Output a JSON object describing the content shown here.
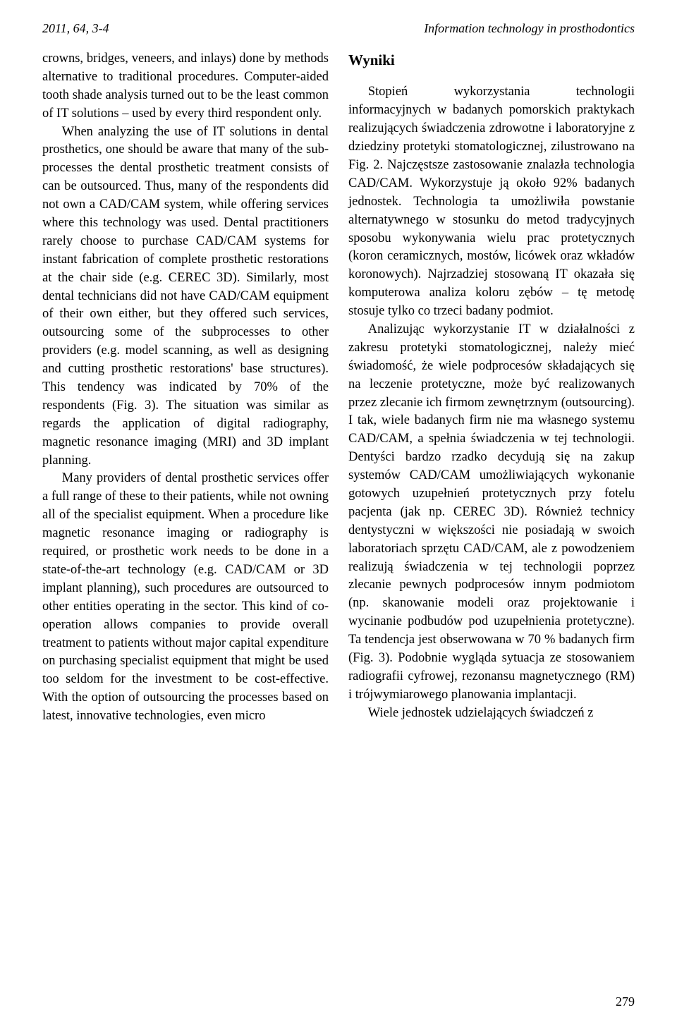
{
  "header": {
    "left": "2011, 64, 3-4",
    "right": "Information technology in prosthodontics"
  },
  "leftColumn": {
    "p1": "crowns, bridges, veneers, and inlays) done by methods alternative to traditional procedures. Computer-aided tooth shade analysis turned out to be the least common of IT solutions – used by every third respondent only.",
    "p2": "When analyzing the use of IT solutions in dental prosthetics, one should be aware that many of the sub-processes the dental prosthetic treatment consists of can be outsourced. Thus, many of the respondents did not own a CAD/CAM system, while offering services where this technology was used. Dental practitioners rarely choose to purchase CAD/CAM systems for instant fabrication of complete prosthetic restorations at the chair side (e.g. CEREC 3D). Similarly, most dental technicians did not have CAD/CAM equipment of their own either, but they offered such services, outsourcing some of the subprocesses to other providers (e.g. model scanning, as well as designing and cutting prosthetic restorations' base structures). This tendency was indicated by 70% of the respondents (Fig. 3). The situation was similar as regards the application of digital radiography, magnetic resonance imaging (MRI) and 3D implant planning.",
    "p3": "Many providers of dental prosthetic services offer a full range of these to their patients, while not owning all of the specialist equipment. When a procedure like magnetic resonance imaging or radiography is required, or prosthetic work needs to be done in a state-of-the-art technology (e.g. CAD/CAM or 3D implant planning), such procedures are outsourced to other entities operating in the sector. This kind of co-operation allows companies to provide overall treatment to patients without major capital expenditure on purchasing specialist equipment that might be used too seldom for the investment to be cost-effective. With the option of outsourcing the processes based on latest, innovative technologies, even micro"
  },
  "rightColumn": {
    "heading": "Wyniki",
    "p1": "Stopień wykorzystania technologii informacyjnych w badanych pomorskich praktykach realizujących świadczenia zdrowotne i laboratoryjne z dziedziny protetyki stomatologicznej, zilustrowano na Fig. 2. Najczęstsze zastosowanie znalazła technologia CAD/CAM. Wykorzystuje ją około 92% badanych jednostek. Technologia ta umożliwiła powstanie alternatywnego w stosunku do metod tradycyjnych sposobu wykonywania wielu prac protetycznych (koron ceramicznych, mostów, licówek oraz wkładów koronowych). Najrzadziej stosowaną IT okazała się komputerowa analiza koloru zębów – tę metodę stosuje tylko co trzeci badany podmiot.",
    "p2": "Analizując wykorzystanie IT w działalności z zakresu protetyki stomatologicznej, należy mieć świadomość, że wiele podprocesów składających się na leczenie protetyczne, może być realizowanych przez zlecanie ich firmom zewnętrznym (outsourcing). I tak, wiele badanych firm nie ma własnego systemu CAD/CAM, a spełnia świadczenia w tej technologii. Dentyści bardzo rzadko decydują się na zakup systemów CAD/CAM umożliwiających wykonanie gotowych uzupełnień protetycznych przy fotelu pacjenta (jak np. CEREC 3D). Również technicy dentystyczni w większości nie posiadają w swoich laboratoriach sprzętu CAD/CAM, ale z powodzeniem realizują świadczenia w tej technologii poprzez zlecanie pewnych podprocesów innym podmiotom (np. skanowanie modeli oraz projektowanie i wycinanie podbudów pod uzupełnienia protetyczne). Ta tendencja jest obserwowana w 70 % badanych firm (Fig. 3). Podobnie wygląda sytuacja ze stosowaniem radiografii cyfrowej, rezonansu magnetycznego (RM) i trójwymiarowego planowania implantacji.",
    "p3": "Wiele jednostek udzielających świadczeń z"
  },
  "pageNumber": "279"
}
